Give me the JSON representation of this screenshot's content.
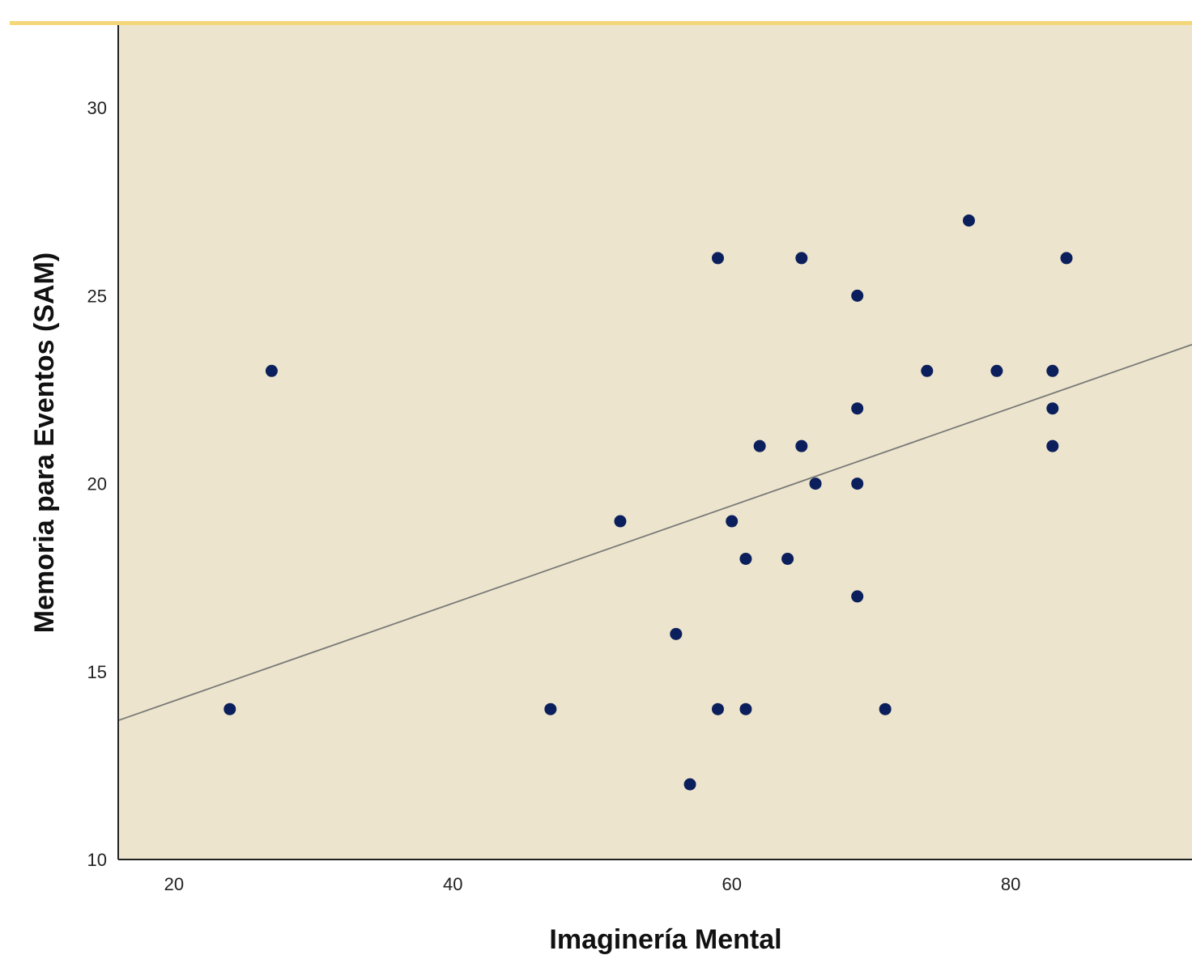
{
  "colors": {
    "plot_background": "#ece4cd",
    "marker": "#0b1f5c",
    "fit_line": "#7a7a78",
    "axis": "#222222",
    "top_band": "#f4d77a"
  },
  "chart_data": {
    "type": "scatter",
    "title": "",
    "xlabel": "Imaginería Mental",
    "ylabel": "Memoria para Eventos (SAM)",
    "xlim": [
      16,
      93
    ],
    "ylim": [
      10,
      32.2
    ],
    "x_ticks": [
      20,
      40,
      60,
      80
    ],
    "x_tick_labels": [
      "20",
      "40",
      "60",
      "80"
    ],
    "y_ticks": [
      10,
      15,
      20,
      25,
      30
    ],
    "y_tick_labels": [
      "10",
      "15",
      "20",
      "25",
      "30"
    ],
    "grid": false,
    "fit_line": {
      "type": "linear",
      "from": [
        16,
        13.7
      ],
      "to": [
        93,
        23.7
      ]
    },
    "points": [
      {
        "x": 24,
        "y": 14
      },
      {
        "x": 27,
        "y": 23
      },
      {
        "x": 47,
        "y": 14
      },
      {
        "x": 52,
        "y": 19
      },
      {
        "x": 56,
        "y": 16
      },
      {
        "x": 57,
        "y": 12
      },
      {
        "x": 59,
        "y": 26
      },
      {
        "x": 59,
        "y": 14
      },
      {
        "x": 60,
        "y": 19
      },
      {
        "x": 61,
        "y": 18
      },
      {
        "x": 61,
        "y": 14
      },
      {
        "x": 62,
        "y": 21
      },
      {
        "x": 64,
        "y": 18
      },
      {
        "x": 65,
        "y": 26
      },
      {
        "x": 65,
        "y": 21
      },
      {
        "x": 66,
        "y": 20
      },
      {
        "x": 69,
        "y": 25
      },
      {
        "x": 69,
        "y": 22
      },
      {
        "x": 69,
        "y": 20
      },
      {
        "x": 69,
        "y": 17
      },
      {
        "x": 71,
        "y": 14
      },
      {
        "x": 74,
        "y": 23
      },
      {
        "x": 77,
        "y": 27
      },
      {
        "x": 79,
        "y": 23
      },
      {
        "x": 83,
        "y": 23
      },
      {
        "x": 83,
        "y": 22
      },
      {
        "x": 83,
        "y": 21
      },
      {
        "x": 84,
        "y": 26
      }
    ]
  }
}
